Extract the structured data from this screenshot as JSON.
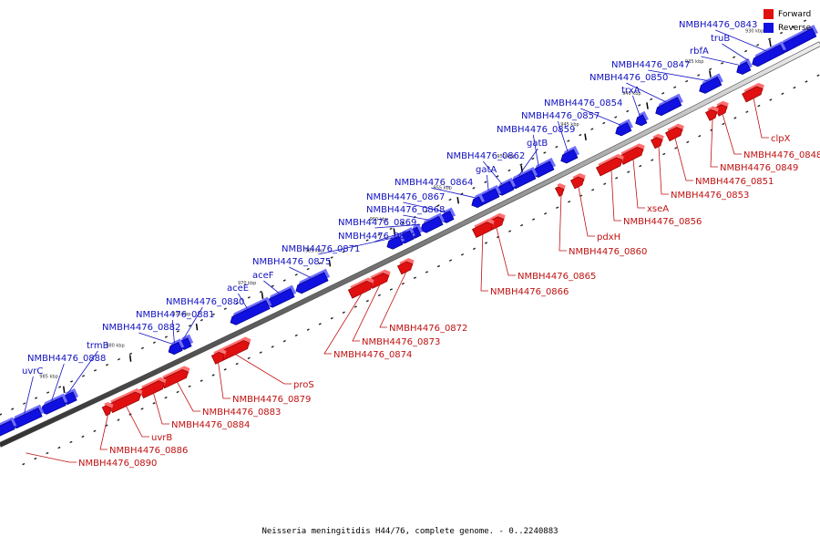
{
  "legend": [
    {
      "label": "Forward",
      "color": "#e01010"
    },
    {
      "label": "Reverse",
      "color": "#1010e0"
    }
  ],
  "caption": "Neisseria meningitidis H44/76, complete genome. - 0..2240883",
  "ticks": [
    "930 kbp",
    "935 kbp",
    "940 kbp",
    "945 kbp",
    "950 kbp",
    "955 kbp",
    "960 kbp",
    "965 kbp",
    "970 kbp",
    "975 kbp",
    "980 kbp",
    "985 kbp"
  ],
  "reverse_genes": [
    "NMBH4476_0843",
    "truB",
    "rbfA",
    "NMBH4476_0847",
    "NMBH4476_0850",
    "trxA",
    "NMBH4476_0854",
    "NMBH4476_0857",
    "NMBH4476_0859",
    "gatB",
    "NMBH4476_0862",
    "gatA",
    "NMBH4476_0864",
    "NMBH4476_0867",
    "NMBH4476_0868",
    "NMBH4476_0869",
    "NMBH4476_0870",
    "NMBH4476_0871",
    "NMBH4476_0875",
    "aceF",
    "aceE",
    "NMBH4476_0880",
    "NMBH4476_0881",
    "NMBH4476_0882",
    "trmB",
    "NMBH4476_0888",
    "uvrC"
  ],
  "forward_genes": [
    "clpX",
    "NMBH4476_0848",
    "NMBH4476_0849",
    "NMBH4476_0851",
    "NMBH4476_0853",
    "xseA",
    "NMBH4476_0856",
    "pdxH",
    "NMBH4476_0860",
    "NMBH4476_0865",
    "NMBH4476_0866",
    "NMBH4476_0872",
    "NMBH4476_0873",
    "NMBH4476_0874",
    "proS",
    "NMBH4476_0879",
    "NMBH4476_0883",
    "NMBH4476_0884",
    "uvrB",
    "NMBH4476_0886",
    "NMBH4476_0890"
  ]
}
